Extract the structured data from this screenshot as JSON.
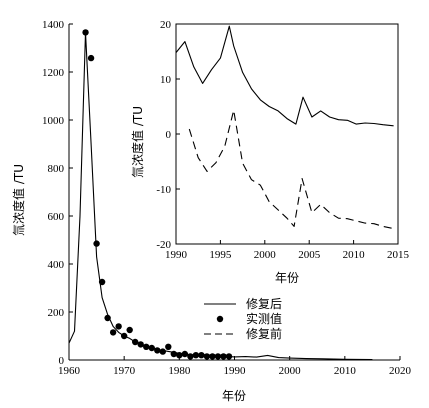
{
  "chart_data": [
    {
      "type": "line",
      "xlabel": "年份",
      "ylabel": "氚浓度值 /TU",
      "xlim": [
        1960,
        2020
      ],
      "ylim": [
        0,
        1400
      ],
      "x_ticks": [
        1960,
        1970,
        1980,
        1990,
        2000,
        2010,
        2020
      ],
      "y_ticks": [
        0,
        200,
        400,
        600,
        800,
        1000,
        1200,
        1400
      ],
      "grid": false,
      "legend_position": "center",
      "series": [
        {
          "name": "修复后",
          "style": "solid-line",
          "color": "#000000",
          "x": [
            1960,
            1961,
            1962,
            1963,
            1964,
            1965,
            1966,
            1967,
            1968,
            1969,
            1970,
            1971,
            1972,
            1973,
            1974,
            1975,
            1976,
            1977,
            1978,
            1979,
            1980,
            1981,
            1982,
            1983,
            1984,
            1985,
            1986,
            1987,
            1988,
            1989,
            1990,
            1992,
            1994,
            1996,
            1998,
            2000,
            2003,
            2006,
            2010,
            2015
          ],
          "y": [
            70,
            120,
            600,
            1365,
            900,
            430,
            260,
            190,
            140,
            115,
            100,
            90,
            75,
            65,
            55,
            50,
            44,
            40,
            36,
            32,
            28,
            25,
            22,
            20,
            18,
            17,
            16,
            15,
            14,
            14,
            13,
            14,
            12,
            19,
            10,
            8,
            6,
            5,
            3,
            2
          ]
        },
        {
          "name": "实测值",
          "style": "filled-dots",
          "color": "#000000",
          "x": [
            1963,
            1964,
            1965,
            1966,
            1967,
            1968,
            1969,
            1970,
            1971,
            1972,
            1973,
            1974,
            1975,
            1976,
            1977,
            1978,
            1979,
            1980,
            1981,
            1982,
            1983,
            1984,
            1985,
            1986,
            1987,
            1988,
            1989
          ],
          "y": [
            1365,
            1258,
            485,
            325,
            175,
            115,
            140,
            100,
            125,
            75,
            65,
            55,
            50,
            40,
            35,
            55,
            25,
            20,
            25,
            15,
            20,
            20,
            15,
            15,
            15,
            15,
            15
          ]
        },
        {
          "name": "修复前",
          "style": "dashed-line",
          "color": "#000000",
          "x": [],
          "y": []
        }
      ]
    },
    {
      "type": "line",
      "xlabel": "",
      "ylabel": "",
      "xlim": [
        1990,
        2015
      ],
      "ylim": [
        -20,
        20
      ],
      "x_ticks": [
        1990,
        1995,
        2000,
        2005,
        2010,
        2015
      ],
      "y_ticks": [
        -20,
        -10,
        0,
        10,
        20
      ],
      "grid": false,
      "series": [
        {
          "name": "修复后",
          "style": "solid-line",
          "color": "#000000",
          "x": [
            1990,
            1991,
            1992,
            1993,
            1994,
            1995,
            1996,
            1996.5,
            1997.5,
            1998.5,
            1999.5,
            2000.5,
            2001.5,
            2002.5,
            2003.5,
            2004.3,
            2005.3,
            2006.3,
            2007.3,
            2008.3,
            2009.3,
            2010.3,
            2011.3,
            2012.3,
            2013.3,
            2014.5
          ],
          "y": [
            14.8,
            16.8,
            12.2,
            9.2,
            11.7,
            13.8,
            19.6,
            16,
            11.2,
            8.2,
            6.2,
            5,
            4.2,
            2.8,
            1.8,
            6.7,
            3.1,
            4.2,
            3.1,
            2.6,
            2.5,
            1.8,
            2,
            1.9,
            1.7,
            1.5
          ]
        },
        {
          "name": "修复前",
          "style": "dashed-line",
          "color": "#000000",
          "x": [
            1991.5,
            1992.5,
            1993.5,
            1994.5,
            1995.5,
            1996.5,
            1997.5,
            1998.5,
            1999.5,
            2000.5,
            2001.5,
            2002.5,
            2003.3,
            2004.2,
            2005.3,
            2006.3,
            2007.3,
            2008.3,
            2009.3,
            2010.3,
            2011.3,
            2012.3,
            2013.3,
            2014.5
          ],
          "y": [
            0.9,
            -4.3,
            -6.8,
            -5.2,
            -2.2,
            4.3,
            -5.3,
            -8.3,
            -9.3,
            -12.3,
            -13.8,
            -15.3,
            -16.8,
            -8.1,
            -14.3,
            -12.8,
            -14.3,
            -15.3,
            -15.4,
            -15.8,
            -16.2,
            -16.3,
            -16.8,
            -17.2
          ]
        }
      ]
    }
  ]
}
